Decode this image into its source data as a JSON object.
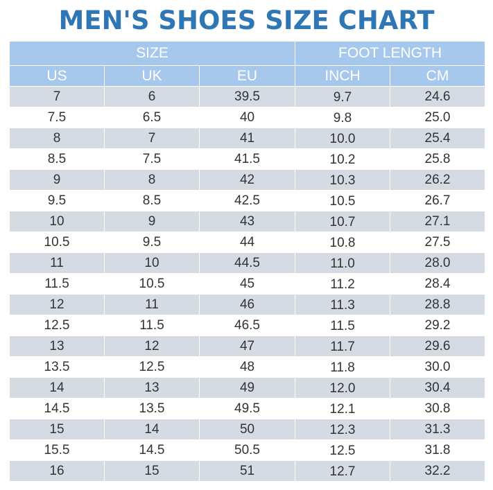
{
  "title": "MEN'S SHOES SIZE CHART",
  "header": {
    "group_size": "SIZE",
    "group_foot": "FOOT LENGTH",
    "columns": [
      "US",
      "UK",
      "EU",
      "INCH",
      "CM"
    ]
  },
  "rows": [
    [
      "7",
      "6",
      "39.5",
      "9.7",
      "24.6"
    ],
    [
      "7.5",
      "6.5",
      "40",
      "9.8",
      "25.0"
    ],
    [
      "8",
      "7",
      "41",
      "10.0",
      "25.4"
    ],
    [
      "8.5",
      "7.5",
      "41.5",
      "10.2",
      "25.8"
    ],
    [
      "9",
      "8",
      "42",
      "10.3",
      "26.2"
    ],
    [
      "9.5",
      "8.5",
      "42.5",
      "10.5",
      "26.7"
    ],
    [
      "10",
      "9",
      "43",
      "10.7",
      "27.1"
    ],
    [
      "10.5",
      "9.5",
      "44",
      "10.8",
      "27.5"
    ],
    [
      "11",
      "10",
      "44.5",
      "11.0",
      "28.0"
    ],
    [
      "11.5",
      "10.5",
      "45",
      "11.2",
      "28.4"
    ],
    [
      "12",
      "11",
      "46",
      "11.3",
      "28.8"
    ],
    [
      "12.5",
      "11.5",
      "46.5",
      "11.5",
      "29.2"
    ],
    [
      "13",
      "12",
      "47",
      "11.7",
      "29.6"
    ],
    [
      "13.5",
      "12.5",
      "48",
      "11.8",
      "30.0"
    ],
    [
      "14",
      "13",
      "49",
      "12.0",
      "30.4"
    ],
    [
      "14.5",
      "13.5",
      "49.5",
      "12.1",
      "30.8"
    ],
    [
      "15",
      "14",
      "50",
      "12.3",
      "31.3"
    ],
    [
      "15.5",
      "14.5",
      "50.5",
      "12.5",
      "31.8"
    ],
    [
      "16",
      "15",
      "51",
      "12.7",
      "32.2"
    ]
  ],
  "colors": {
    "title": "#2f76b5",
    "header_bg": "#a6c8ec",
    "header_text": "#ffffff",
    "stripe_bg": "#d5dbe3",
    "plain_bg": "#ffffff",
    "cell_text": "#333333"
  }
}
